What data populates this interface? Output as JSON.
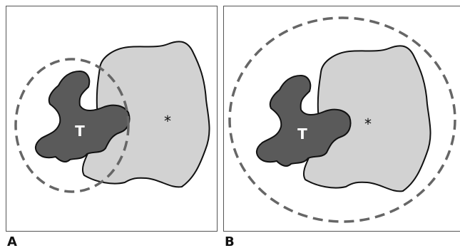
{
  "panels": [
    {
      "label": "A",
      "tumor_label": "T",
      "region_label": "*"
    },
    {
      "label": "B",
      "tumor_label": "T",
      "region_label": "*"
    }
  ]
}
